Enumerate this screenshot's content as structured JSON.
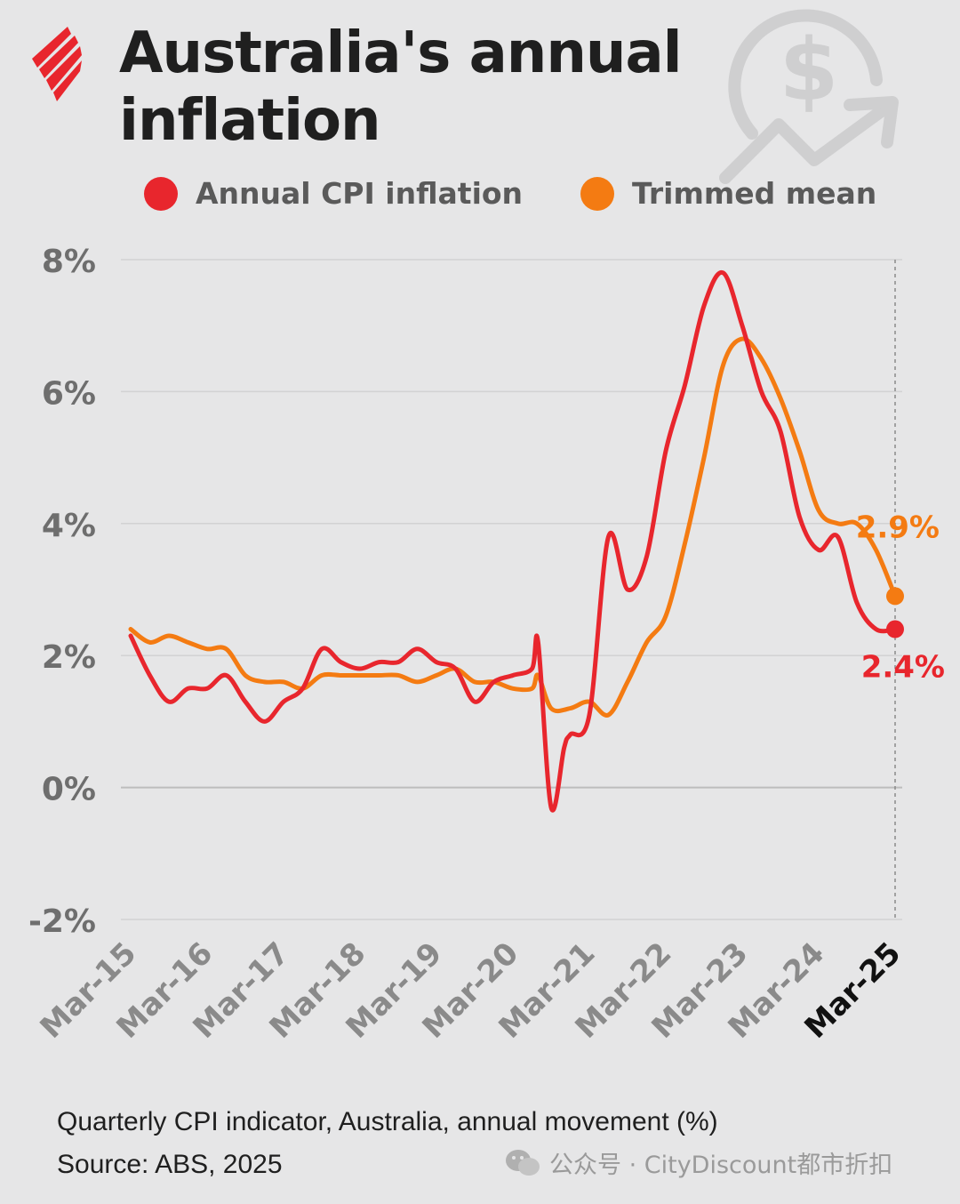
{
  "header": {
    "title_line1": "Australia's annual",
    "title_line2": "inflation"
  },
  "legend": [
    {
      "label": "Annual CPI inflation",
      "color": "#e8262d"
    },
    {
      "label": "Trimmed mean",
      "color": "#f47b12"
    }
  ],
  "footer": {
    "line1": "Quarterly CPI indicator, Australia, annual movement (%)",
    "line2": "Source: ABS, 2025"
  },
  "watermark": {
    "text": "公众号 · CityDiscount都市折扣"
  },
  "colors": {
    "background": "#e6e6e7",
    "cpi": "#e8262d",
    "trimmed": "#f47b12",
    "grid": "#c9c9c9",
    "axis_text": "#6e6e6e"
  },
  "icons": [
    "sbs-logo-icon",
    "dollar-growth-icon",
    "wechat-icon"
  ],
  "chart_data": {
    "type": "line",
    "title": "Australia's annual inflation",
    "subtitle": "Quarterly CPI indicator, Australia, annual movement (%)",
    "ylim": [
      -2,
      8
    ],
    "y_ticks": [
      8,
      6,
      4,
      2,
      0,
      -2
    ],
    "y_tick_labels": [
      "8%",
      "6%",
      "4%",
      "2%",
      "0%",
      "-2%"
    ],
    "x_tick_labels": [
      "Mar-15",
      "Mar-16",
      "Mar-17",
      "Mar-18",
      "Mar-19",
      "Mar-20",
      "Mar-21",
      "Mar-22",
      "Mar-23",
      "Mar-24",
      "Mar-25"
    ],
    "highlighted_tick": "Mar-25",
    "grid": true,
    "legend_position": "top",
    "series": [
      {
        "name": "Annual CPI inflation",
        "color": "#e8262d",
        "end_label": "2.4%",
        "points": [
          [
            2015.0,
            2.3
          ],
          [
            2015.25,
            1.7
          ],
          [
            2015.5,
            1.3
          ],
          [
            2015.75,
            1.5
          ],
          [
            2016.0,
            1.5
          ],
          [
            2016.25,
            1.7
          ],
          [
            2016.5,
            1.3
          ],
          [
            2016.75,
            1.0
          ],
          [
            2017.0,
            1.3
          ],
          [
            2017.25,
            1.5
          ],
          [
            2017.5,
            2.1
          ],
          [
            2017.75,
            1.9
          ],
          [
            2018.0,
            1.8
          ],
          [
            2018.25,
            1.9
          ],
          [
            2018.5,
            1.9
          ],
          [
            2018.75,
            2.1
          ],
          [
            2019.0,
            1.9
          ],
          [
            2019.25,
            1.8
          ],
          [
            2019.5,
            1.3
          ],
          [
            2019.75,
            1.6
          ],
          [
            2020.0,
            1.7
          ],
          [
            2020.25,
            1.8
          ],
          [
            2020.33,
            2.2
          ],
          [
            2020.5,
            -0.3
          ],
          [
            2020.67,
            0.6
          ],
          [
            2020.75,
            0.8
          ],
          [
            2021.0,
            1.1
          ],
          [
            2021.25,
            3.8
          ],
          [
            2021.5,
            3.0
          ],
          [
            2021.75,
            3.5
          ],
          [
            2022.0,
            5.1
          ],
          [
            2022.25,
            6.1
          ],
          [
            2022.5,
            7.3
          ],
          [
            2022.75,
            7.8
          ],
          [
            2023.0,
            7.0
          ],
          [
            2023.25,
            6.0
          ],
          [
            2023.5,
            5.4
          ],
          [
            2023.75,
            4.1
          ],
          [
            2024.0,
            3.6
          ],
          [
            2024.25,
            3.8
          ],
          [
            2024.5,
            2.8
          ],
          [
            2024.75,
            2.4
          ],
          [
            2025.0,
            2.4
          ]
        ]
      },
      {
        "name": "Trimmed mean",
        "color": "#f47b12",
        "end_label": "2.9%",
        "points": [
          [
            2015.0,
            2.4
          ],
          [
            2015.25,
            2.2
          ],
          [
            2015.5,
            2.3
          ],
          [
            2015.75,
            2.2
          ],
          [
            2016.0,
            2.1
          ],
          [
            2016.25,
            2.1
          ],
          [
            2016.5,
            1.7
          ],
          [
            2016.75,
            1.6
          ],
          [
            2017.0,
            1.6
          ],
          [
            2017.25,
            1.5
          ],
          [
            2017.5,
            1.7
          ],
          [
            2017.75,
            1.7
          ],
          [
            2018.0,
            1.7
          ],
          [
            2018.25,
            1.7
          ],
          [
            2018.5,
            1.7
          ],
          [
            2018.75,
            1.6
          ],
          [
            2019.0,
            1.7
          ],
          [
            2019.25,
            1.8
          ],
          [
            2019.5,
            1.6
          ],
          [
            2019.75,
            1.6
          ],
          [
            2020.0,
            1.5
          ],
          [
            2020.25,
            1.5
          ],
          [
            2020.33,
            1.7
          ],
          [
            2020.5,
            1.2
          ],
          [
            2020.75,
            1.2
          ],
          [
            2021.0,
            1.3
          ],
          [
            2021.25,
            1.1
          ],
          [
            2021.5,
            1.6
          ],
          [
            2021.75,
            2.2
          ],
          [
            2022.0,
            2.6
          ],
          [
            2022.25,
            3.7
          ],
          [
            2022.5,
            5.0
          ],
          [
            2022.75,
            6.4
          ],
          [
            2023.0,
            6.8
          ],
          [
            2023.25,
            6.5
          ],
          [
            2023.5,
            5.9
          ],
          [
            2023.75,
            5.1
          ],
          [
            2024.0,
            4.2
          ],
          [
            2024.25,
            4.0
          ],
          [
            2024.5,
            4.0
          ],
          [
            2024.75,
            3.6
          ],
          [
            2025.0,
            2.9
          ]
        ]
      }
    ]
  }
}
